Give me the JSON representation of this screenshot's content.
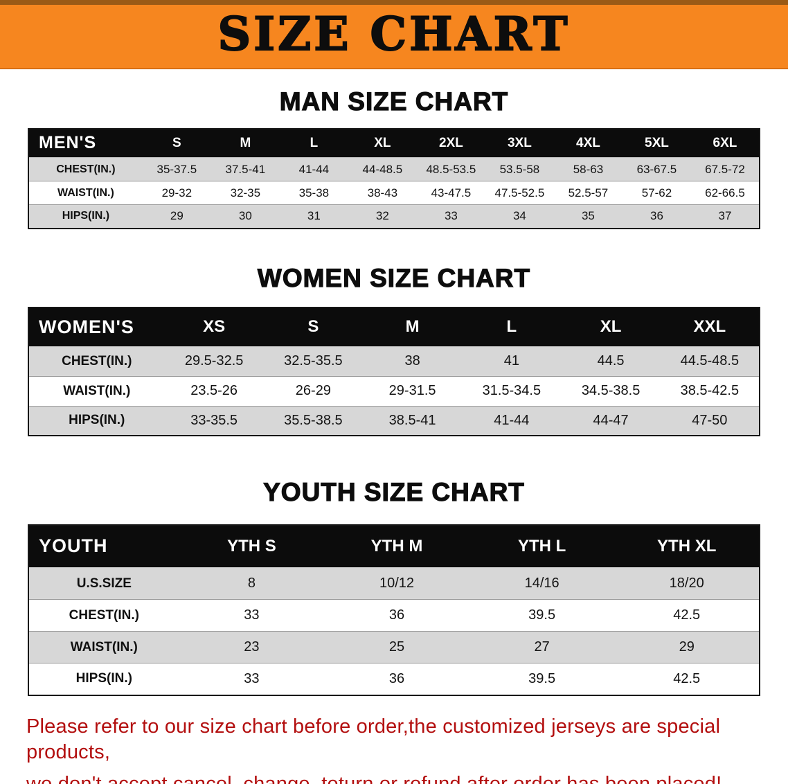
{
  "banner": {
    "title": "SIZE CHART"
  },
  "chart_data": [
    {
      "type": "table",
      "id": "men",
      "title": "MAN SIZE CHART",
      "header": [
        "MEN'S",
        "S",
        "M",
        "L",
        "XL",
        "2XL",
        "3XL",
        "4XL",
        "5XL",
        "6XL"
      ],
      "rows": [
        {
          "label": "CHEST(IN.)",
          "values": [
            "35-37.5",
            "37.5-41",
            "41-44",
            "44-48.5",
            "48.5-53.5",
            "53.5-58",
            "58-63",
            "63-67.5",
            "67.5-72"
          ]
        },
        {
          "label": "WAIST(IN.)",
          "values": [
            "29-32",
            "32-35",
            "35-38",
            "38-43",
            "43-47.5",
            "47.5-52.5",
            "52.5-57",
            "57-62",
            "62-66.5"
          ]
        },
        {
          "label": "HIPS(IN.)",
          "values": [
            "29",
            "30",
            "31",
            "32",
            "33",
            "34",
            "35",
            "36",
            "37"
          ]
        }
      ]
    },
    {
      "type": "table",
      "id": "women",
      "title": "WOMEN SIZE CHART",
      "header": [
        "WOMEN'S",
        "XS",
        "S",
        "M",
        "L",
        "XL",
        "XXL"
      ],
      "rows": [
        {
          "label": "CHEST(IN.)",
          "values": [
            "29.5-32.5",
            "32.5-35.5",
            "38",
            "41",
            "44.5",
            "44.5-48.5"
          ]
        },
        {
          "label": "WAIST(IN.)",
          "values": [
            "23.5-26",
            "26-29",
            "29-31.5",
            "31.5-34.5",
            "34.5-38.5",
            "38.5-42.5"
          ]
        },
        {
          "label": "HIPS(IN.)",
          "values": [
            "33-35.5",
            "35.5-38.5",
            "38.5-41",
            "41-44",
            "44-47",
            "47-50"
          ]
        }
      ]
    },
    {
      "type": "table",
      "id": "youth",
      "title": "YOUTH SIZE CHART",
      "header": [
        "YOUTH",
        "YTH S",
        "YTH M",
        "YTH L",
        "YTH XL"
      ],
      "rows": [
        {
          "label": "U.S.SIZE",
          "values": [
            "8",
            "10/12",
            "14/16",
            "18/20"
          ]
        },
        {
          "label": "CHEST(IN.)",
          "values": [
            "33",
            "36",
            "39.5",
            "42.5"
          ]
        },
        {
          "label": "WAIST(IN.)",
          "values": [
            "23",
            "25",
            "27",
            "29"
          ]
        },
        {
          "label": "HIPS(IN.)",
          "values": [
            "33",
            "36",
            "39.5",
            "42.5"
          ]
        }
      ]
    }
  ],
  "disclaimer": {
    "line1": "Please refer to our size chart before order,the customized jerseys are special products,",
    "line2": "we don't accept cancel, change, teturn or refund after order has been placed!"
  },
  "colors": {
    "banner_orange": "#f6861f",
    "header_black": "#0c0c0c",
    "row_gray": "#d7d7d7",
    "disclaimer_red": "#b30f0f"
  }
}
